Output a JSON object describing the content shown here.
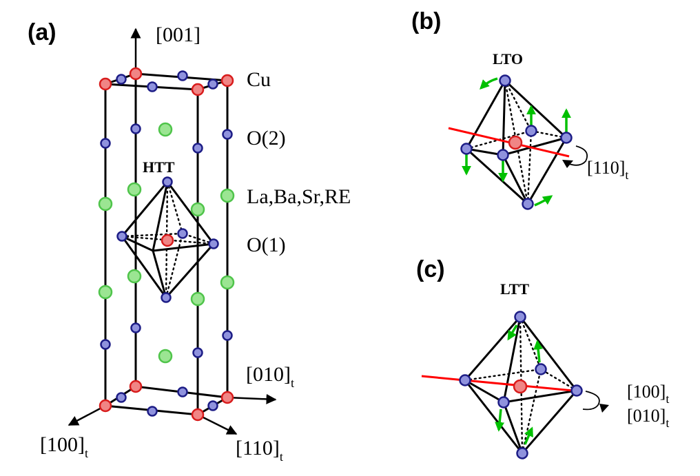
{
  "panels": {
    "a": "(a)",
    "b": "(b)",
    "c": "(c)"
  },
  "axes": {
    "z": "[001]",
    "y": "[010]",
    "x": "[100]",
    "diag": "[110]",
    "subscript": "t"
  },
  "legend": {
    "cu": "Cu",
    "o2": "O(2)",
    "la": "La,Ba,Sr,RE",
    "o1": "O(1)"
  },
  "phases": {
    "htt": "HTT",
    "lto": "LTO",
    "ltt": "LTT"
  },
  "rotation_axes": {
    "b": "[110]",
    "c_line1": "[100]",
    "c_line2": "[010]",
    "subscript": "t"
  },
  "colors": {
    "cu": "#f08585",
    "oxygen": "#8f92dd",
    "la_site": "#9be592",
    "tilt_axis": "#ff0000",
    "displacement_arrow": "#00c000"
  }
}
